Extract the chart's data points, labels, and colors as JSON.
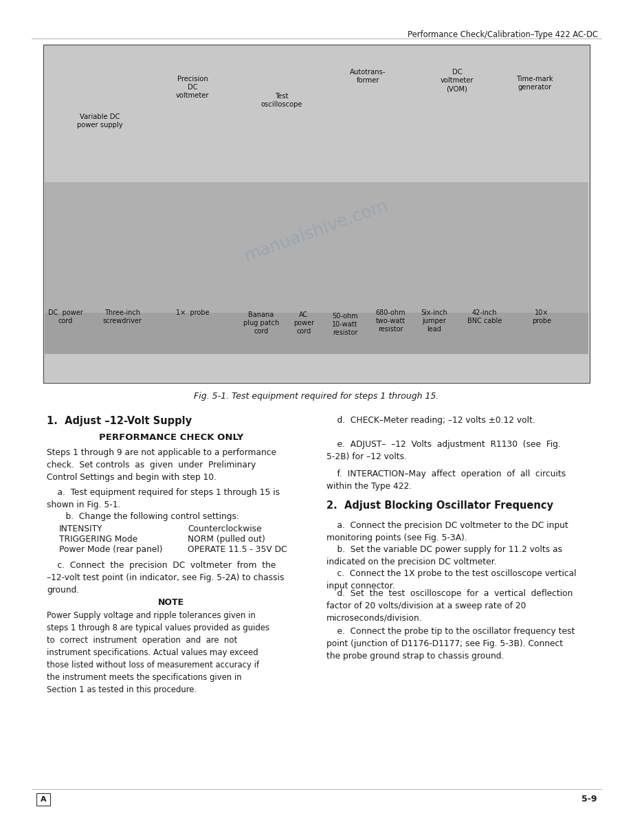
{
  "header_text": "Performance Check/Calibration–Type 422 AC-DC",
  "fig_caption": "Fig. 5-1. Test equipment required for steps 1 through 15.",
  "footer_left": "A",
  "footer_right": "5-9",
  "page_bg": "#ffffff",
  "text_color": "#1a1a1a",
  "box_border": "#555555",
  "watermark_text": "manualshive.com",
  "section1_heading": "1.  Adjust –12-Volt Supply",
  "section1_subheading": "PERFORMANCE CHECK ONLY",
  "section1_para1": "Steps 1 through 9 are not applicable to a performance\ncheck.  Set controls  as  given  under  Preliminary\nControl Settings and begin with step 10.",
  "section1_para_a": "    a.  Test equipment required for steps 1 through 15 is\nshown in Fig. 5-1.",
  "section1_para_b": "    b.  Change the following control settings:",
  "section1_table": [
    [
      "INTENSITY",
      "Counterclockwise"
    ],
    [
      "TRIGGERING Mode",
      "NORM (pulled out)"
    ],
    [
      "Power Mode (rear panel)",
      "OPERATE 11.5 - 35V DC"
    ]
  ],
  "section1_para_c": "    c.  Connect  the  precision  DC  voltmeter  from  the\n–12-volt test point (in indicator, see Fig. 5-2A) to chassis\nground.",
  "note_heading": "NOTE",
  "note_text": "Power Supply voltage and ripple tolerances given in\nsteps 1 through 8 are typical values provided as guides\nto  correct  instrument  operation  and  are  not\ninstrument specifications. Actual values may exceed\nthose listed without loss of measurement accuracy if\nthe instrument meets the specifications given in\nSection 1 as tested in this procedure.",
  "section1_para_d": "    d.  CHECK–Meter reading; –12 volts ±0.12 volt.",
  "section1_para_e": "    e.  ADJUST–  –12  Volts  adjustment  R1130  (see  Fig.\n5-2B) for –12 volts.",
  "section1_para_f": "    f.  INTERACTION–May  affect  operation  of  all  circuits\nwithin the Type 422.",
  "section2_heading": "2.  Adjust Blocking Oscillator Frequency",
  "section2_para_a": "    a.  Connect the precision DC voltmeter to the DC input\nmonitoring points (see Fig. 5-3A).",
  "section2_para_b": "    b.  Set the variable DC power supply for 11.2 volts as\nindicated on the precision DC voltmeter.",
  "section2_para_c": "    c.  Connect the 1X probe to the test oscilloscope vertical\ninput connector.",
  "section2_para_d": "    d.  Set  the  test  oscilloscope  for  a  vertical  deflection\nfactor of 20 volts/division at a sweep rate of 20\nmicroseconds/division.",
  "section2_para_e": "    e.  Connect the probe tip to the oscillator frequency test\npoint (junction of D1176-D1177; see Fig. 5-3B). Connect\nthe probe ground strap to chassis ground.",
  "photo_top_labels": [
    [
      280,
      110,
      "Precision\nDC\nvoltmeter"
    ],
    [
      410,
      135,
      "Test\noscilloscope"
    ],
    [
      535,
      100,
      "Autotrans-\nformer"
    ],
    [
      665,
      100,
      "DC\nvoltmeter\n(VOM)"
    ],
    [
      778,
      110,
      "Time-mark\ngenerator"
    ]
  ],
  "photo_var_dc": [
    145,
    165,
    "Variable DC\npower supply"
  ],
  "photo_bottom_labels": [
    [
      95,
      450,
      "DC  power\ncord"
    ],
    [
      178,
      450,
      "Three-inch\nscrewdriver"
    ],
    [
      280,
      450,
      "1×  probe"
    ],
    [
      380,
      453,
      "Banana\nplug patch\ncord"
    ],
    [
      442,
      453,
      "AC\npower\ncord"
    ],
    [
      502,
      455,
      "50-ohm\n10-watt\nresistor"
    ],
    [
      568,
      450,
      "680-ohm\ntwo-watt\nresistor"
    ],
    [
      632,
      450,
      "Six-inch\njumper\nlead"
    ],
    [
      705,
      450,
      "42-inch\nBNC cable"
    ],
    [
      788,
      450,
      "10×\nprobe"
    ]
  ]
}
